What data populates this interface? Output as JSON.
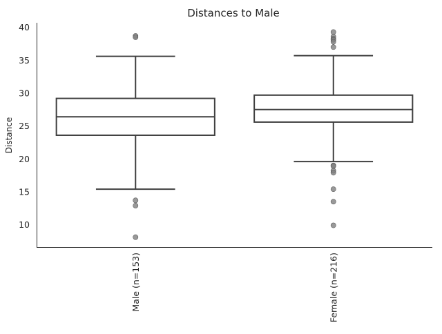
{
  "chart_data": {
    "type": "box",
    "title": "Distances to Male",
    "xlabel": "",
    "ylabel": "Distance",
    "ylim": [
      6.6,
      40.7
    ],
    "yticks": [
      10,
      15,
      20,
      25,
      30,
      35,
      40
    ],
    "grid": false,
    "categories": [
      "Male (n=153)",
      "Female (n=216)"
    ],
    "boxes": [
      {
        "name": "Male (n=153)",
        "whisker_low": 15.4,
        "q1": 23.6,
        "median": 26.4,
        "q3": 29.2,
        "whisker_high": 35.6,
        "outliers": [
          38.7,
          38.5,
          13.7,
          12.9,
          8.1
        ]
      },
      {
        "name": "Female (n=216)",
        "whisker_low": 19.6,
        "q1": 25.6,
        "median": 27.5,
        "q3": 29.7,
        "whisker_high": 35.7,
        "outliers": [
          39.3,
          38.6,
          38.3,
          38.1,
          37.8,
          37.0,
          19.0,
          18.9,
          18.2,
          17.9,
          15.4,
          13.5,
          9.9
        ]
      }
    ],
    "colors": {
      "line": "#3f3f3f",
      "box_fill": "#ffffff",
      "outlier": "#7f7f7f",
      "axis": "#262626"
    }
  }
}
